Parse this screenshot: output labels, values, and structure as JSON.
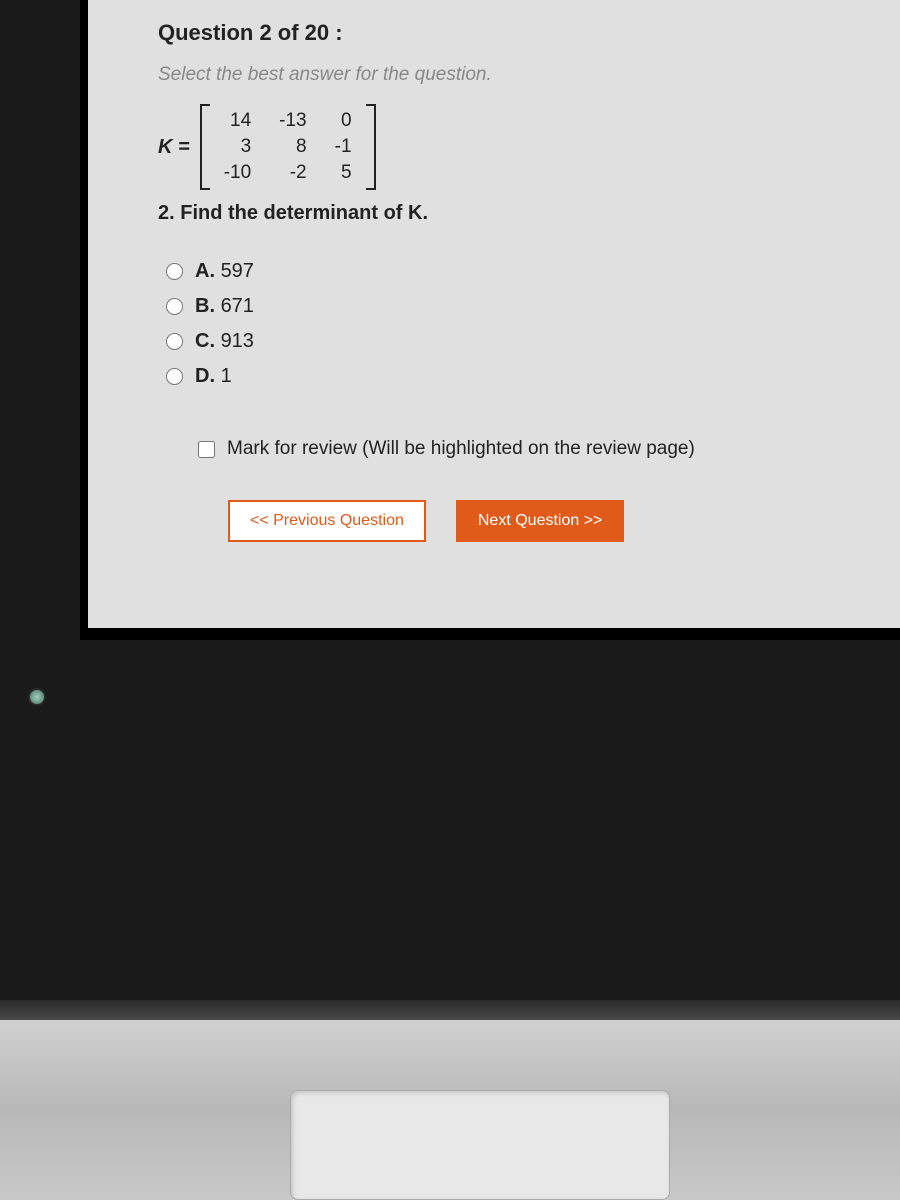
{
  "header": "Question 2 of 20 :",
  "instruction": "Select the best answer for the question.",
  "matrix": {
    "label": "K =",
    "rows": [
      [
        "14",
        "-13",
        "0"
      ],
      [
        "3",
        "8",
        "-1"
      ],
      [
        "-10",
        "-2",
        "5"
      ]
    ]
  },
  "question": "2.  Find the determinant of K.",
  "options": [
    {
      "letter": "A",
      "text": "597"
    },
    {
      "letter": "B",
      "text": "671"
    },
    {
      "letter": "C",
      "text": "913"
    },
    {
      "letter": "D",
      "text": "1"
    }
  ],
  "review_label": "Mark for review (Will be highlighted on the review page)",
  "buttons": {
    "prev": "<< Previous Question",
    "next": "Next Question >>"
  },
  "colors": {
    "accent": "#e05a1a",
    "screen_bg": "#e0e0e0",
    "body_bg": "#1a1a1a",
    "instruction_text": "#888888"
  }
}
